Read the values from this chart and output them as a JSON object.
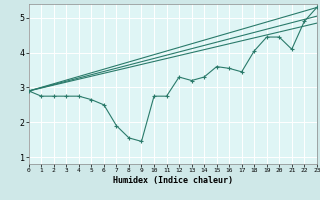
{
  "xlabel": "Humidex (Indice chaleur)",
  "xlim": [
    0,
    23
  ],
  "ylim": [
    0.8,
    5.4
  ],
  "xticks": [
    0,
    1,
    2,
    3,
    4,
    5,
    6,
    7,
    8,
    9,
    10,
    11,
    12,
    13,
    14,
    15,
    16,
    17,
    18,
    19,
    20,
    21,
    22,
    23
  ],
  "yticks": [
    1,
    2,
    3,
    4,
    5
  ],
  "background_color": "#cfe8e8",
  "plot_bg_color": "#dff5f5",
  "grid_color": "#ffffff",
  "line_color": "#2a7a6a",
  "line1_x": [
    0,
    1,
    2,
    3,
    4,
    5,
    6,
    7,
    8,
    9,
    10,
    11,
    12,
    13,
    14,
    15,
    16,
    17,
    18,
    19,
    20,
    21,
    22,
    23
  ],
  "line1_y": [
    2.9,
    2.75,
    2.75,
    2.75,
    2.75,
    2.65,
    2.5,
    1.9,
    1.55,
    1.45,
    2.75,
    2.75,
    3.3,
    3.2,
    3.3,
    3.6,
    3.55,
    3.45,
    4.05,
    4.45,
    4.45,
    4.1,
    4.9,
    5.3
  ],
  "line2_x": [
    0,
    23
  ],
  "line2_y": [
    2.9,
    5.3
  ],
  "line3_x": [
    0,
    23
  ],
  "line3_y": [
    2.9,
    5.05
  ],
  "line4_x": [
    0,
    23
  ],
  "line4_y": [
    2.9,
    4.85
  ]
}
